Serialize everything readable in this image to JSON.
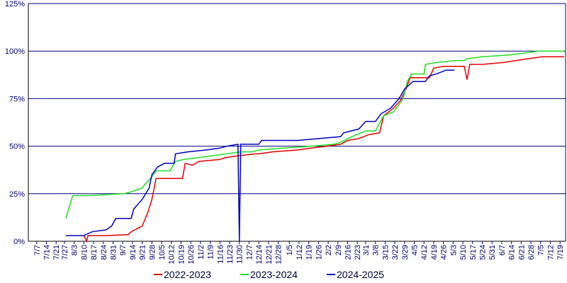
{
  "chart_data": {
    "type": "line",
    "xlim": [
      0,
      387
    ],
    "xticks": [
      {
        "value": 6,
        "label": "7/7"
      },
      {
        "value": 13,
        "label": "7/14"
      },
      {
        "value": 20,
        "label": "7/21"
      },
      {
        "value": 26,
        "label": "7/27"
      },
      {
        "value": 33,
        "label": "8/3"
      },
      {
        "value": 40,
        "label": "8/10"
      },
      {
        "value": 47,
        "label": "8/17"
      },
      {
        "value": 54,
        "label": "8/24"
      },
      {
        "value": 61,
        "label": "8/31"
      },
      {
        "value": 68,
        "label": "9/7"
      },
      {
        "value": 75,
        "label": "9/14"
      },
      {
        "value": 82,
        "label": "9/21"
      },
      {
        "value": 89,
        "label": "9/28"
      },
      {
        "value": 96,
        "label": "10/5"
      },
      {
        "value": 103,
        "label": "10/12"
      },
      {
        "value": 110,
        "label": "10/19"
      },
      {
        "value": 117,
        "label": "10/26"
      },
      {
        "value": 124,
        "label": "11/2"
      },
      {
        "value": 131,
        "label": "11/9"
      },
      {
        "value": 138,
        "label": "11/16"
      },
      {
        "value": 145,
        "label": "11/23"
      },
      {
        "value": 152,
        "label": "11/30"
      },
      {
        "value": 159,
        "label": "12/7"
      },
      {
        "value": 166,
        "label": "12/14"
      },
      {
        "value": 173,
        "label": "12/21"
      },
      {
        "value": 180,
        "label": "12/28"
      },
      {
        "value": 188,
        "label": "1/5"
      },
      {
        "value": 195,
        "label": "1/12"
      },
      {
        "value": 202,
        "label": "1/19"
      },
      {
        "value": 209,
        "label": "1/26"
      },
      {
        "value": 216,
        "label": "2/2"
      },
      {
        "value": 223,
        "label": "2/9"
      },
      {
        "value": 230,
        "label": "2/16"
      },
      {
        "value": 237,
        "label": "2/23"
      },
      {
        "value": 243,
        "label": "3/1"
      },
      {
        "value": 250,
        "label": "3/8"
      },
      {
        "value": 257,
        "label": "3/15"
      },
      {
        "value": 264,
        "label": "3/22"
      },
      {
        "value": 271,
        "label": "3/29"
      },
      {
        "value": 278,
        "label": "4/5"
      },
      {
        "value": 285,
        "label": "4/12"
      },
      {
        "value": 292,
        "label": "4/19"
      },
      {
        "value": 299,
        "label": "4/26"
      },
      {
        "value": 306,
        "label": "5/3"
      },
      {
        "value": 313,
        "label": "5/10"
      },
      {
        "value": 320,
        "label": "5/17"
      },
      {
        "value": 327,
        "label": "5/24"
      },
      {
        "value": 334,
        "label": "5/31"
      },
      {
        "value": 341,
        "label": "6/7"
      },
      {
        "value": 348,
        "label": "6/14"
      },
      {
        "value": 355,
        "label": "6/21"
      },
      {
        "value": 362,
        "label": "6/28"
      },
      {
        "value": 369,
        "label": "7/5"
      },
      {
        "value": 376,
        "label": "7/12"
      },
      {
        "value": 383,
        "label": "7/19"
      }
    ],
    "ylim": [
      0,
      125
    ],
    "yticks": [
      {
        "value": 0,
        "label": "0%"
      },
      {
        "value": 25,
        "label": "25%"
      },
      {
        "value": 50,
        "label": "50%"
      },
      {
        "value": 75,
        "label": "75%"
      },
      {
        "value": 100,
        "label": "100%"
      },
      {
        "value": 125,
        "label": "125%"
      }
    ],
    "grid": true,
    "legend": "bottom",
    "series": [
      {
        "name": "2022-2023",
        "color": "#dd0000",
        "x": [
          40,
          42,
          43,
          56,
          72,
          74,
          82,
          86,
          89,
          92,
          111,
          113,
          118,
          123,
          138,
          142,
          152,
          164,
          166,
          176,
          194,
          204,
          215,
          225,
          230,
          238,
          245,
          253,
          256,
          263,
          268,
          272,
          275,
          289,
          292,
          299,
          314,
          316,
          318,
          327,
          342,
          360,
          370,
          386
        ],
        "values": [
          3,
          0,
          3,
          3,
          3.5,
          5,
          8,
          15,
          22,
          33,
          33,
          41,
          40,
          42,
          43,
          44,
          45,
          46,
          46,
          47,
          48,
          49,
          50,
          51,
          53,
          54,
          56,
          57,
          66,
          70,
          74,
          80,
          86,
          86,
          91,
          92,
          92,
          85,
          93,
          93,
          94,
          96,
          97,
          97
        ]
      },
      {
        "name": "2023-2024",
        "color": "#22dd22",
        "x": [
          27,
          32,
          43,
          69,
          74,
          82,
          84,
          88,
          92,
          102,
          106,
          112,
          123,
          133,
          143,
          153,
          161,
          166,
          184,
          204,
          220,
          225,
          233,
          243,
          250,
          256,
          263,
          270,
          273,
          276,
          285,
          286,
          294,
          307,
          314,
          316,
          327,
          347,
          358,
          368,
          386
        ],
        "values": [
          12,
          24,
          24,
          25,
          26,
          28,
          30,
          33,
          37,
          37,
          42,
          43,
          44,
          45,
          46,
          47,
          47,
          48,
          49,
          50,
          51,
          52,
          55,
          58,
          58,
          66,
          68,
          75,
          84,
          88,
          88,
          93,
          94,
          95,
          95,
          96,
          97,
          98,
          99,
          100,
          100
        ]
      },
      {
        "name": "2024-2025",
        "color": "#0000bb",
        "x": [
          27,
          40,
          43,
          46,
          56,
          60,
          63,
          74,
          76,
          82,
          87,
          89,
          93,
          98,
          105,
          106,
          115,
          128,
          138,
          143,
          151,
          152,
          153,
          166,
          168,
          194,
          209,
          225,
          227,
          238,
          243,
          250,
          254,
          261,
          267,
          271,
          277,
          286,
          289,
          294,
          301,
          307
        ],
        "values": [
          3,
          3,
          4,
          5,
          6,
          8,
          12,
          12,
          17,
          22,
          28,
          35,
          39,
          41,
          41,
          46,
          47,
          48,
          49,
          50,
          51,
          0,
          51,
          51,
          53,
          53,
          54,
          55,
          57,
          59,
          63,
          63,
          67,
          70,
          75,
          80,
          84,
          84,
          87,
          88,
          90,
          90
        ]
      }
    ]
  }
}
